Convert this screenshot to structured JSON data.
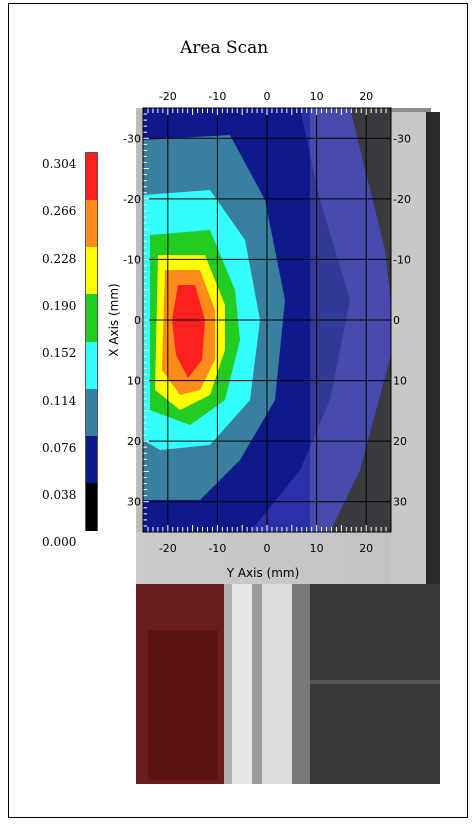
{
  "chart_data": {
    "type": "heatmap",
    "title": "Area Scan",
    "xlabel": "Y Axis (mm)",
    "ylabel": "X Axis (mm)",
    "x_ticks": [
      -20,
      -10,
      0,
      10,
      20
    ],
    "y_ticks": [
      -30,
      -20,
      -10,
      0,
      10,
      20,
      30
    ],
    "x_range": [
      -25,
      25
    ],
    "y_range": [
      -35,
      35
    ],
    "grid": true,
    "colorbar": {
      "labels": [
        "0.304",
        "0.266",
        "0.228",
        "0.190",
        "0.152",
        "0.114",
        "0.076",
        "0.038",
        "0.000"
      ],
      "colors": [
        "#ff1f1f",
        "#ff8c1a",
        "#ffff00",
        "#22cc22",
        "#33ffff",
        "#3a7fa0",
        "#0a1a8a",
        "#000000"
      ],
      "placement": "left"
    },
    "peak": {
      "y_mm": -16,
      "x_mm": 2,
      "value": 0.304
    }
  }
}
